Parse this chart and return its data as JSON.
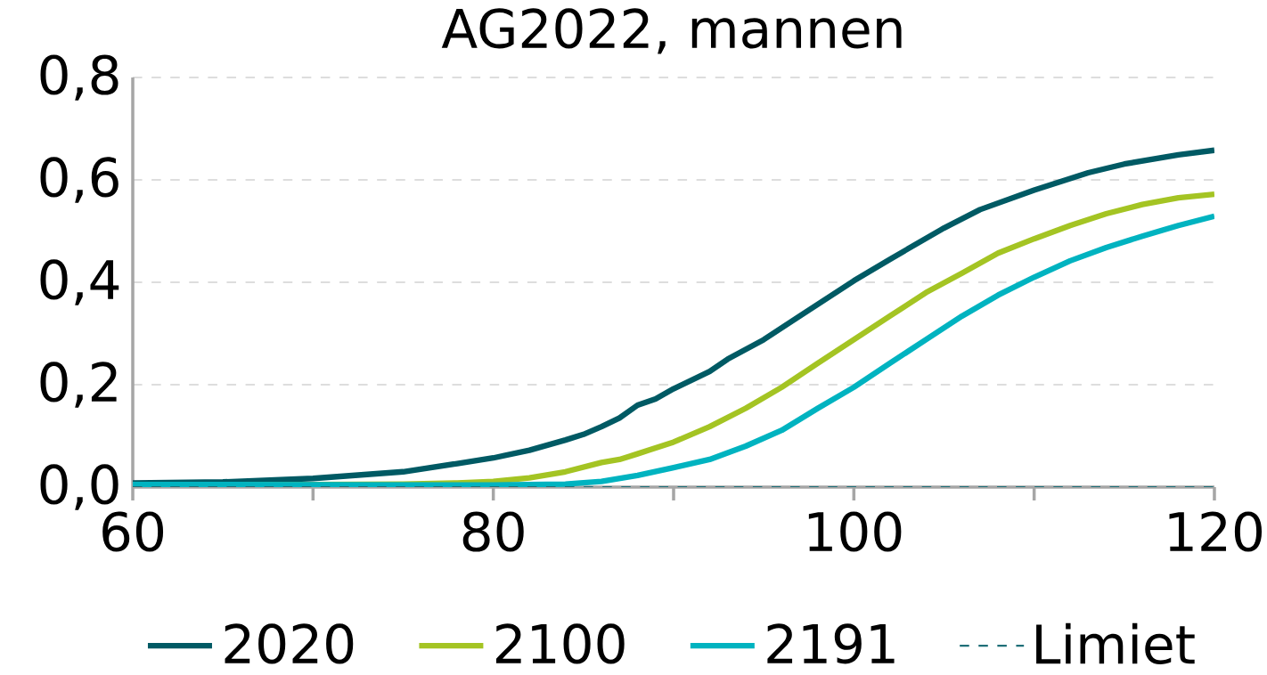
{
  "chart_data": {
    "type": "line",
    "title": "AG2022, mannen",
    "xlim": [
      60,
      120
    ],
    "ylim": [
      0,
      0.8
    ],
    "xticks": [
      60,
      {
        "value": 70,
        "label": null
      },
      80,
      {
        "value": 90,
        "label": null
      },
      100,
      {
        "value": 110,
        "label": null
      },
      120
    ],
    "yticks": [
      {
        "value": 0,
        "label": "0,0"
      },
      {
        "value": 0.2,
        "label": "0,2"
      },
      {
        "value": 0.4,
        "label": "0,4"
      },
      {
        "value": 0.6,
        "label": "0,6"
      },
      {
        "value": 0.8,
        "label": "0,8"
      }
    ],
    "grid": "y",
    "legend": "bottom",
    "marker": "none",
    "series": [
      {
        "name": "2020",
        "color": "#005a64",
        "line_style": "solid",
        "x": [
          60,
          65,
          70,
          75,
          78,
          80,
          82,
          84,
          85,
          86,
          87,
          88,
          89,
          90,
          92,
          93,
          95,
          97,
          100,
          102,
          105,
          107,
          110,
          113,
          115,
          118,
          120
        ],
        "values": [
          0.008,
          0.01,
          0.017,
          0.03,
          0.046,
          0.057,
          0.072,
          0.092,
          0.103,
          0.118,
          0.135,
          0.16,
          0.172,
          0.192,
          0.226,
          0.25,
          0.288,
          0.334,
          0.403,
          0.445,
          0.506,
          0.542,
          0.58,
          0.614,
          0.631,
          0.649,
          0.658
        ]
      },
      {
        "name": "2100",
        "color": "#a4c423",
        "line_style": "solid",
        "x": [
          60,
          70,
          75,
          78,
          80,
          82,
          84,
          86,
          87,
          88,
          90,
          92,
          94,
          96,
          98,
          100,
          102,
          104,
          106,
          108,
          110,
          112,
          114,
          116,
          118,
          120
        ],
        "values": [
          0.005,
          0.005,
          0.006,
          0.008,
          0.011,
          0.018,
          0.03,
          0.048,
          0.054,
          0.065,
          0.088,
          0.118,
          0.154,
          0.195,
          0.242,
          0.288,
          0.334,
          0.38,
          0.418,
          0.457,
          0.485,
          0.511,
          0.534,
          0.552,
          0.565,
          0.572
        ]
      },
      {
        "name": "2191",
        "color": "#00b3c0",
        "line_style": "solid",
        "x": [
          60,
          80,
          84,
          86,
          88,
          90,
          91,
          92,
          94,
          96,
          98,
          100,
          102,
          104,
          106,
          108,
          110,
          112,
          114,
          116,
          118,
          120
        ],
        "values": [
          0.005,
          0.004,
          0.006,
          0.011,
          0.023,
          0.038,
          0.046,
          0.054,
          0.08,
          0.111,
          0.154,
          0.195,
          0.242,
          0.288,
          0.334,
          0.375,
          0.41,
          0.442,
          0.468,
          0.49,
          0.511,
          0.529
        ]
      },
      {
        "name": "Limiet",
        "color": "#1f6f78",
        "line_style": "dashed",
        "x": [
          60,
          120
        ],
        "values": [
          0,
          0
        ]
      }
    ]
  }
}
